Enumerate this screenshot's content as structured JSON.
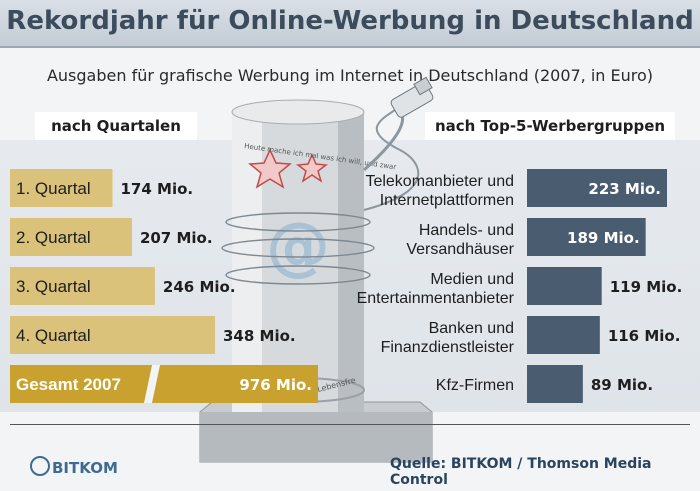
{
  "title": "Rekordjahr für Online-Werbung in Deutschland",
  "subtitle": "Ausgaben für grafische Werbung im Internet in Deutschland (2007, in Euro)",
  "left_header": "nach Quartalen",
  "right_header": "nach Top-5-Werbergruppen",
  "source": "Quelle: BITKOM / Thomson Media Control",
  "logo_text": "BITKOM",
  "pillar_text": "Heute mache ich mal was ich will, und zwar",
  "pillar_text_2": "Lebensfre",
  "colors": {
    "quarter": "#dbc27a",
    "total": "#c9a12e",
    "group": "#4a5d70",
    "title": "#3c4c5c"
  },
  "chart_data": [
    {
      "type": "bar",
      "title": "nach Quartalen",
      "categories": [
        "1. Quartal",
        "2. Quartal",
        "3. Quartal",
        "4. Quartal"
      ],
      "values": [
        174,
        207,
        246,
        348
      ],
      "value_labels": [
        "174 Mio.",
        "207 Mio.",
        "246 Mio.",
        "348 Mio."
      ],
      "total": {
        "label": "Gesamt 2007",
        "value": 976,
        "value_label": "976 Mio."
      },
      "unit": "Mio."
    },
    {
      "type": "bar",
      "title": "nach Top-5-Werbergruppen",
      "categories": [
        [
          "Telekomanbieter und",
          "Internetplattformen"
        ],
        [
          "Handels- und",
          "Versandhäuser"
        ],
        [
          "Medien und",
          "Entertainmentanbieter"
        ],
        [
          "Banken und",
          "Finanzdienstleister"
        ],
        [
          "Kfz-Firmen"
        ]
      ],
      "values": [
        223,
        189,
        119,
        116,
        89
      ],
      "value_labels": [
        "223 Mio.",
        "189 Mio.",
        "119 Mio.",
        "116 Mio.",
        "89 Mio."
      ],
      "unit": "Mio."
    }
  ]
}
